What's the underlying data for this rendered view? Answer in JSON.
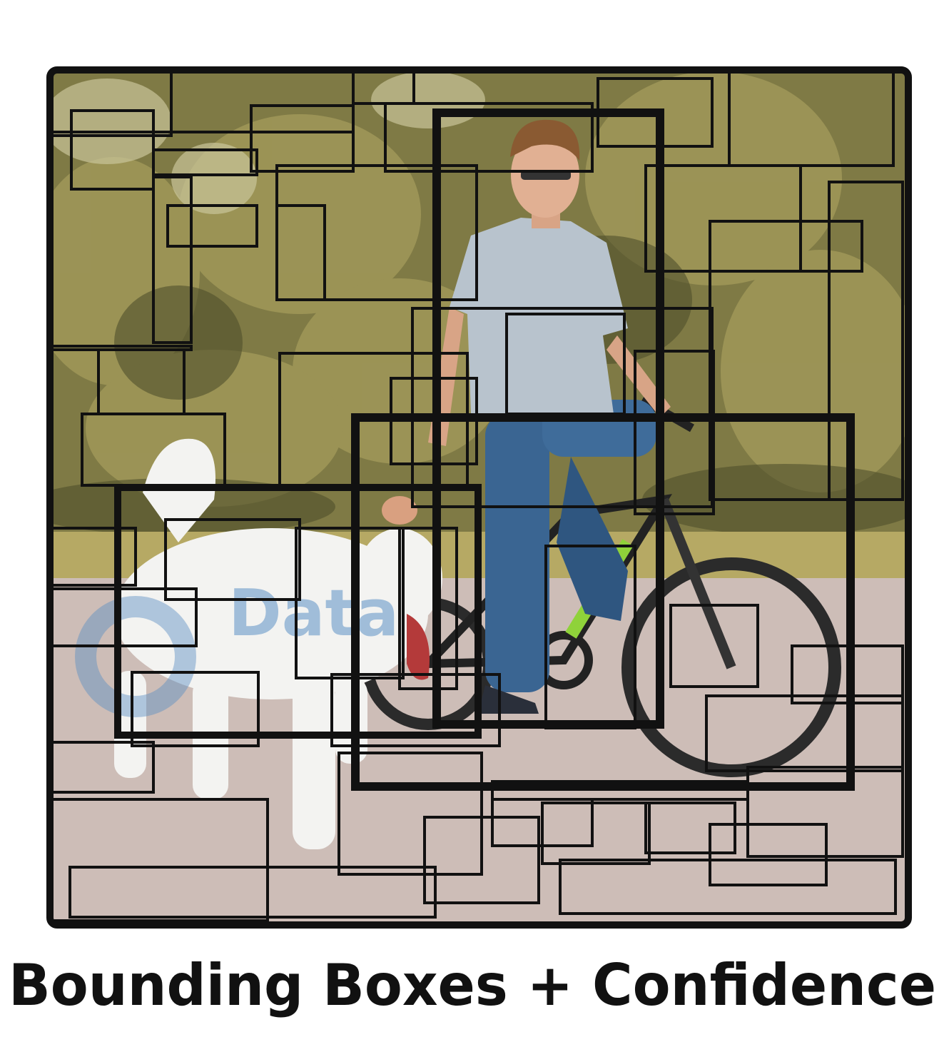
{
  "figure": {
    "caption": "Bounding Boxes + Confidence",
    "watermark": "Data"
  }
}
